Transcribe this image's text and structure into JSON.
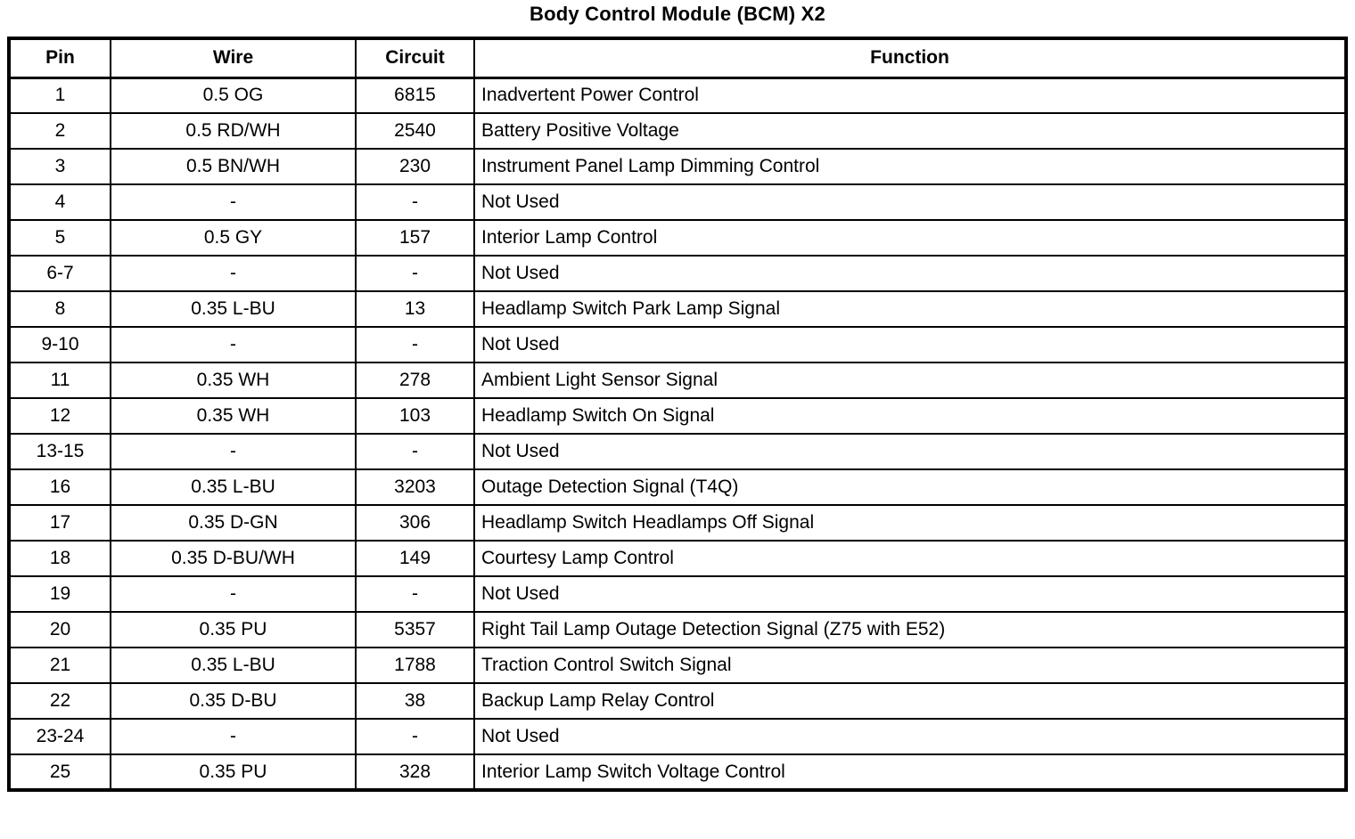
{
  "title": "Body Control Module (BCM) X2",
  "table": {
    "headers": [
      "Pin",
      "Wire",
      "Circuit",
      "Function"
    ],
    "rows": [
      {
        "pin": "1",
        "wire": "0.5 OG",
        "circuit": "6815",
        "function": "Inadvertent Power Control"
      },
      {
        "pin": "2",
        "wire": "0.5 RD/WH",
        "circuit": "2540",
        "function": "Battery Positive Voltage"
      },
      {
        "pin": "3",
        "wire": "0.5 BN/WH",
        "circuit": "230",
        "function": "Instrument Panel Lamp Dimming Control"
      },
      {
        "pin": "4",
        "wire": "-",
        "circuit": "-",
        "function": "Not Used"
      },
      {
        "pin": "5",
        "wire": "0.5 GY",
        "circuit": "157",
        "function": "Interior Lamp Control"
      },
      {
        "pin": "6-7",
        "wire": "-",
        "circuit": "-",
        "function": "Not Used"
      },
      {
        "pin": "8",
        "wire": "0.35 L-BU",
        "circuit": "13",
        "function": "Headlamp Switch Park Lamp Signal"
      },
      {
        "pin": "9-10",
        "wire": "-",
        "circuit": "-",
        "function": "Not Used"
      },
      {
        "pin": "11",
        "wire": "0.35 WH",
        "circuit": "278",
        "function": "Ambient Light Sensor Signal"
      },
      {
        "pin": "12",
        "wire": "0.35 WH",
        "circuit": "103",
        "function": "Headlamp Switch On Signal"
      },
      {
        "pin": "13-15",
        "wire": "-",
        "circuit": "-",
        "function": "Not Used"
      },
      {
        "pin": "16",
        "wire": "0.35 L-BU",
        "circuit": "3203",
        "function": "Outage Detection Signal (T4Q)"
      },
      {
        "pin": "17",
        "wire": "0.35 D-GN",
        "circuit": "306",
        "function": "Headlamp Switch Headlamps Off Signal"
      },
      {
        "pin": "18",
        "wire": "0.35 D-BU/WH",
        "circuit": "149",
        "function": "Courtesy Lamp Control"
      },
      {
        "pin": "19",
        "wire": "-",
        "circuit": "-",
        "function": "Not Used"
      },
      {
        "pin": "20",
        "wire": "0.35 PU",
        "circuit": "5357",
        "function": "Right Tail Lamp Outage Detection Signal (Z75 with E52)"
      },
      {
        "pin": "21",
        "wire": "0.35 L-BU",
        "circuit": "1788",
        "function": "Traction Control Switch Signal"
      },
      {
        "pin": "22",
        "wire": "0.35 D-BU",
        "circuit": "38",
        "function": "Backup Lamp Relay Control"
      },
      {
        "pin": "23-24",
        "wire": "-",
        "circuit": "-",
        "function": "Not Used"
      },
      {
        "pin": "25",
        "wire": "0.35 PU",
        "circuit": "328",
        "function": "Interior Lamp Switch Voltage Control"
      }
    ]
  }
}
